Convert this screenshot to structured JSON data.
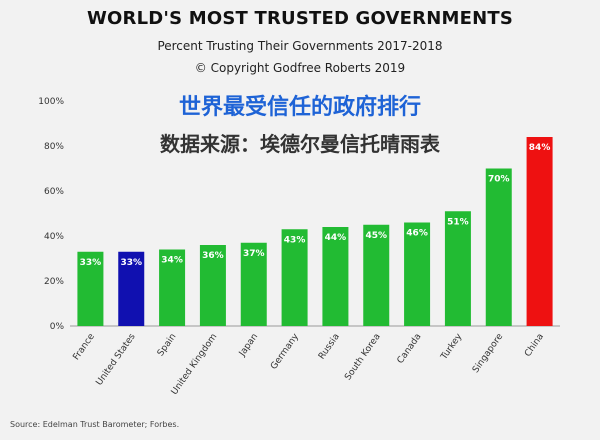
{
  "header": {
    "title": "WORLD'S MOST TRUSTED GOVERNMENTS",
    "subtitle": "Percent Trusting Their Governments 2017-2018",
    "copyright": "© Copyright Godfree Roberts 2019",
    "cn_title": "世界最受信任的政府排行",
    "cn_source": "数据来源：埃德尔曼信托晴雨表"
  },
  "footer": {
    "source": "Source: Edelman Trust Barometer; Forbes."
  },
  "chart_data": {
    "type": "bar",
    "title": "WORLD'S MOST TRUSTED GOVERNMENTS",
    "subtitle": "Percent Trusting Their Governments 2017-2018",
    "xlabel": "",
    "ylabel": "",
    "ylim": [
      0,
      100
    ],
    "yticks": [
      "0%",
      "20%",
      "40%",
      "60%",
      "80%",
      "100%"
    ],
    "grid": false,
    "categories": [
      "France",
      "United States",
      "Spain",
      "United Kingdom",
      "Japan",
      "Germany",
      "Russia",
      "South Korea",
      "Canada",
      "Turkey",
      "Singapore",
      "China"
    ],
    "values": [
      33,
      33,
      34,
      36,
      37,
      43,
      44,
      45,
      46,
      51,
      70,
      84
    ],
    "labels": [
      "33%",
      "33%",
      "34%",
      "36%",
      "37%",
      "43%",
      "44%",
      "45%",
      "46%",
      "51%",
      "70%",
      "84%"
    ],
    "colors": [
      "#22bb33",
      "#1010b0",
      "#22bb33",
      "#22bb33",
      "#22bb33",
      "#22bb33",
      "#22bb33",
      "#22bb33",
      "#22bb33",
      "#22bb33",
      "#22bb33",
      "#ee1111"
    ]
  }
}
